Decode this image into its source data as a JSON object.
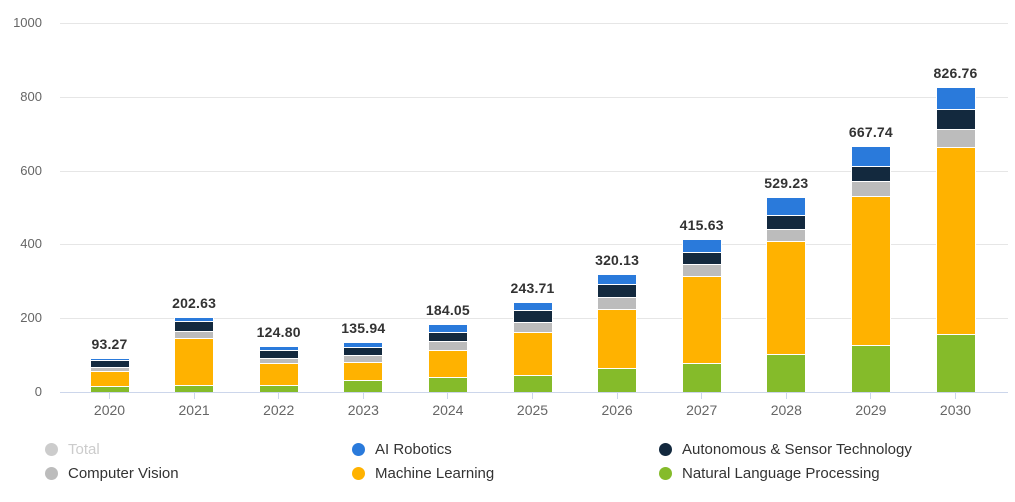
{
  "chart_data": {
    "type": "bar",
    "stacked": true,
    "title": "",
    "xlabel": "",
    "ylabel": "",
    "ylim": [
      0,
      1000
    ],
    "yticks": [
      0,
      200,
      400,
      600,
      800,
      1000
    ],
    "grid": true,
    "legend_position": "bottom",
    "categories": [
      "2020",
      "2021",
      "2022",
      "2023",
      "2024",
      "2025",
      "2026",
      "2027",
      "2028",
      "2029",
      "2030"
    ],
    "series": [
      {
        "name": "Natural Language Processing",
        "color": "#85bb2a",
        "values": [
          16.0,
          19.0,
          18.0,
          31.6,
          41.0,
          46.8,
          64.9,
          78.0,
          102.3,
          126.9,
          158.2
        ]
      },
      {
        "name": "Machine Learning",
        "color": "#ffb200",
        "values": [
          42.0,
          126.63,
          59.3,
          49.5,
          73.05,
          115.91,
          160.63,
          235.03,
          307.13,
          403.84,
          506.06
        ]
      },
      {
        "name": "Computer Vision",
        "color": "#bcbcbc",
        "values": [
          8.5,
          19.0,
          13.5,
          18.0,
          24.0,
          27.0,
          31.6,
          33.3,
          32.8,
          40.0,
          48.3
        ]
      },
      {
        "name": "Autonomous & Sensor Technology",
        "color": "#13293e",
        "values": [
          19.5,
          29.0,
          22.0,
          23.5,
          25.0,
          32.4,
          36.0,
          33.3,
          37.4,
          41.1,
          54.8
        ]
      },
      {
        "name": "AI Robotics",
        "color": "#2a7adb",
        "values": [
          7.27,
          9.0,
          12.0,
          13.34,
          21.0,
          21.6,
          27.0,
          36.0,
          49.6,
          55.9,
          59.4
        ]
      }
    ],
    "totals": [
      93.27,
      202.63,
      124.8,
      135.94,
      184.05,
      243.71,
      320.13,
      415.63,
      529.23,
      667.74,
      826.76
    ],
    "total_labels": [
      "93.27",
      "202.63",
      "124.80",
      "135.94",
      "184.05",
      "243.71",
      "320.13",
      "415.63",
      "529.23",
      "667.74",
      "826.76"
    ]
  },
  "legend": {
    "items": [
      {
        "label": "Total",
        "color": "#cccccc",
        "disabled": true
      },
      {
        "label": "AI Robotics",
        "color": "#2a7adb",
        "disabled": false
      },
      {
        "label": "Autonomous & Sensor Technology",
        "color": "#13293e",
        "disabled": false
      },
      {
        "label": "Computer Vision",
        "color": "#bcbcbc",
        "disabled": false
      },
      {
        "label": "Machine Learning",
        "color": "#ffb200",
        "disabled": false
      },
      {
        "label": "Natural Language Processing",
        "color": "#85bb2a",
        "disabled": false
      }
    ]
  },
  "colors": {
    "gridline": "#e6e6e6",
    "axis_line": "#ccd6eb",
    "axis_label": "#666666",
    "data_label": "#333333",
    "segment_border": "#ffffff"
  }
}
